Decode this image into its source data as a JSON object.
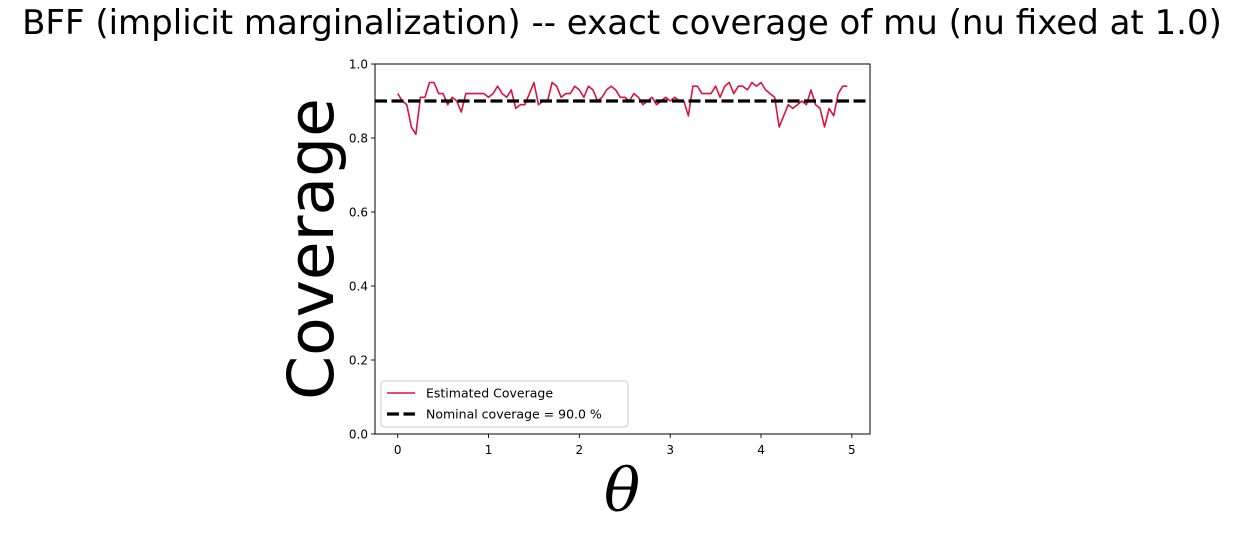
{
  "chart_data": {
    "type": "line",
    "title": "BFF (implicit marginalization) -- exact coverage of mu (nu fixed at 1.0)",
    "xlabel": "θ",
    "ylabel": "Coverage",
    "xlim": [
      -0.25,
      5.2
    ],
    "ylim": [
      0.0,
      1.0
    ],
    "xticks": [
      "0",
      "1",
      "2",
      "3",
      "4",
      "5"
    ],
    "yticks": [
      "0.0",
      "0.2",
      "0.4",
      "0.6",
      "0.8",
      "1.0"
    ],
    "grid": false,
    "legend_position": "lower-left",
    "series": [
      {
        "name": "Estimated Coverage",
        "color": "#dc143c",
        "x": [
          0.0,
          0.05,
          0.1,
          0.15,
          0.2,
          0.25,
          0.3,
          0.35,
          0.4,
          0.45,
          0.5,
          0.55,
          0.6,
          0.65,
          0.7,
          0.75,
          0.8,
          0.85,
          0.9,
          0.95,
          1.0,
          1.05,
          1.1,
          1.15,
          1.2,
          1.25,
          1.3,
          1.35,
          1.4,
          1.45,
          1.5,
          1.55,
          1.6,
          1.65,
          1.7,
          1.75,
          1.8,
          1.85,
          1.9,
          1.95,
          2.0,
          2.05,
          2.1,
          2.15,
          2.2,
          2.25,
          2.3,
          2.35,
          2.4,
          2.45,
          2.5,
          2.55,
          2.6,
          2.65,
          2.7,
          2.75,
          2.8,
          2.85,
          2.9,
          2.95,
          3.0,
          3.05,
          3.1,
          3.15,
          3.2,
          3.25,
          3.3,
          3.35,
          3.4,
          3.45,
          3.5,
          3.55,
          3.6,
          3.65,
          3.7,
          3.75,
          3.8,
          3.85,
          3.9,
          3.95,
          4.0,
          4.05,
          4.1,
          4.15,
          4.2,
          4.25,
          4.3,
          4.35,
          4.4,
          4.45,
          4.5,
          4.55,
          4.6,
          4.65,
          4.7,
          4.75,
          4.8,
          4.85,
          4.9,
          4.95
        ],
        "values": [
          0.92,
          0.9,
          0.89,
          0.83,
          0.81,
          0.91,
          0.91,
          0.95,
          0.95,
          0.92,
          0.92,
          0.89,
          0.91,
          0.9,
          0.87,
          0.92,
          0.92,
          0.92,
          0.92,
          0.92,
          0.91,
          0.92,
          0.94,
          0.92,
          0.91,
          0.93,
          0.88,
          0.89,
          0.89,
          0.92,
          0.95,
          0.89,
          0.9,
          0.9,
          0.95,
          0.94,
          0.91,
          0.92,
          0.92,
          0.94,
          0.93,
          0.91,
          0.94,
          0.93,
          0.9,
          0.91,
          0.93,
          0.94,
          0.93,
          0.91,
          0.91,
          0.9,
          0.92,
          0.91,
          0.89,
          0.9,
          0.91,
          0.89,
          0.9,
          0.91,
          0.9,
          0.91,
          0.9,
          0.9,
          0.86,
          0.94,
          0.94,
          0.92,
          0.92,
          0.92,
          0.94,
          0.91,
          0.94,
          0.95,
          0.92,
          0.94,
          0.94,
          0.93,
          0.95,
          0.94,
          0.95,
          0.93,
          0.92,
          0.91,
          0.83,
          0.86,
          0.89,
          0.88,
          0.89,
          0.9,
          0.89,
          0.93,
          0.89,
          0.88,
          0.83,
          0.88,
          0.86,
          0.92,
          0.94,
          0.94
        ]
      },
      {
        "name": "Nominal coverage = 90.0 %",
        "color": "#000000",
        "style": "dashed",
        "constant": 0.9
      }
    ]
  }
}
